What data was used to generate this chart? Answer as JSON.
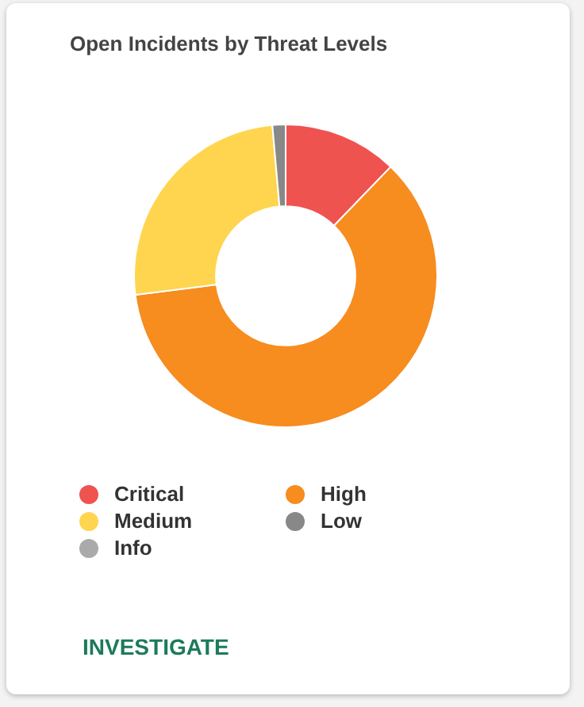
{
  "chart_data": {
    "type": "donut",
    "title": "Open Incidents by Threat Levels",
    "categories": [
      "Critical",
      "High",
      "Medium",
      "Low",
      "Info"
    ],
    "values": [
      12.2,
      60.8,
      25.6,
      1.4,
      0
    ],
    "colors": [
      "#ef5350",
      "#f78c1f",
      "#ffd54f",
      "#888888",
      "#aaaaaa"
    ],
    "legend": "bottom",
    "annotations": [
      "INVESTIGATE"
    ]
  }
}
